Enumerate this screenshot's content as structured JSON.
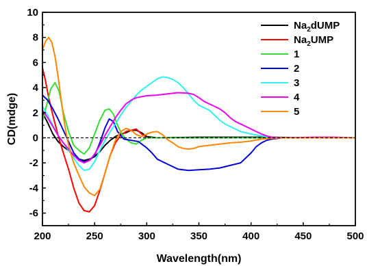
{
  "chart_data": {
    "type": "line",
    "xlabel": "Wavelength(nm)",
    "ylabel": "CD(mdge)",
    "xlim": [
      200,
      500
    ],
    "ylim": [
      -7,
      10
    ],
    "xticks": [
      200,
      250,
      300,
      350,
      400,
      450,
      500
    ],
    "yticks": [
      -6,
      -4,
      -2,
      0,
      2,
      4,
      6,
      8,
      10
    ],
    "grid": false,
    "legend_position": "top-right",
    "zero_line": "dashed",
    "series": [
      {
        "name": "Na2dUMP",
        "name_base": "Na",
        "name_sub": "2",
        "name_rest": "dUMP",
        "color": "#000000",
        "points": [
          [
            200,
            2.0
          ],
          [
            205,
            1.2
          ],
          [
            210,
            0.3
          ],
          [
            215,
            -0.3
          ],
          [
            220,
            -0.7
          ],
          [
            225,
            -1.0
          ],
          [
            230,
            -1.4
          ],
          [
            235,
            -1.7
          ],
          [
            240,
            -1.8
          ],
          [
            245,
            -1.7
          ],
          [
            250,
            -1.5
          ],
          [
            255,
            -1.1
          ],
          [
            260,
            -0.6
          ],
          [
            265,
            -0.2
          ],
          [
            270,
            0.1
          ],
          [
            275,
            0.3
          ],
          [
            280,
            0.4
          ],
          [
            285,
            0.6
          ],
          [
            290,
            0.6
          ],
          [
            295,
            0.4
          ],
          [
            300,
            0.1
          ],
          [
            310,
            0.0
          ],
          [
            350,
            0.05
          ],
          [
            380,
            0.05
          ],
          [
            420,
            0.05
          ],
          [
            450,
            0.0
          ],
          [
            500,
            0.0
          ]
        ]
      },
      {
        "name": "Na2UMP",
        "name_base": "Na",
        "name_sub": "2",
        "name_rest": "UMP",
        "color": "#ff0000",
        "points": [
          [
            200,
            5.6
          ],
          [
            203,
            4.5
          ],
          [
            206,
            3.2
          ],
          [
            210,
            1.8
          ],
          [
            215,
            0.2
          ],
          [
            220,
            -1.2
          ],
          [
            225,
            -2.5
          ],
          [
            230,
            -4.0
          ],
          [
            235,
            -5.2
          ],
          [
            240,
            -5.8
          ],
          [
            245,
            -5.9
          ],
          [
            250,
            -5.4
          ],
          [
            255,
            -4.2
          ],
          [
            260,
            -2.8
          ],
          [
            265,
            -1.4
          ],
          [
            270,
            -0.4
          ],
          [
            275,
            0.2
          ],
          [
            280,
            0.5
          ],
          [
            285,
            0.6
          ],
          [
            290,
            0.7
          ],
          [
            295,
            0.3
          ],
          [
            300,
            0.0
          ],
          [
            320,
            0.0
          ],
          [
            400,
            0.0
          ],
          [
            500,
            0.0
          ]
        ]
      },
      {
        "name": "1",
        "color": "#33dd33",
        "points": [
          [
            200,
            1.3
          ],
          [
            204,
            2.6
          ],
          [
            208,
            3.9
          ],
          [
            212,
            4.4
          ],
          [
            216,
            3.7
          ],
          [
            220,
            2.0
          ],
          [
            225,
            0.5
          ],
          [
            230,
            -0.6
          ],
          [
            235,
            -1.0
          ],
          [
            240,
            -1.3
          ],
          [
            245,
            -0.8
          ],
          [
            250,
            0.3
          ],
          [
            255,
            1.4
          ],
          [
            260,
            2.2
          ],
          [
            264,
            2.3
          ],
          [
            268,
            1.9
          ],
          [
            272,
            1.0
          ],
          [
            276,
            0.3
          ],
          [
            280,
            -0.1
          ],
          [
            285,
            -0.4
          ],
          [
            290,
            -0.5
          ],
          [
            295,
            -0.2
          ],
          [
            300,
            0.0
          ],
          [
            320,
            0.0
          ],
          [
            400,
            0.0
          ],
          [
            500,
            0.0
          ]
        ]
      },
      {
        "name": "2",
        "color": "#0000dd",
        "points": [
          [
            200,
            3.4
          ],
          [
            205,
            3.0
          ],
          [
            210,
            2.3
          ],
          [
            215,
            1.5
          ],
          [
            220,
            0.6
          ],
          [
            225,
            -0.3
          ],
          [
            230,
            -1.2
          ],
          [
            235,
            -1.7
          ],
          [
            240,
            -1.9
          ],
          [
            245,
            -1.8
          ],
          [
            250,
            -1.4
          ],
          [
            255,
            -0.4
          ],
          [
            260,
            0.8
          ],
          [
            264,
            1.5
          ],
          [
            268,
            1.3
          ],
          [
            272,
            0.5
          ],
          [
            278,
            -0.1
          ],
          [
            285,
            -0.2
          ],
          [
            292,
            -0.3
          ],
          [
            300,
            -0.8
          ],
          [
            305,
            -1.2
          ],
          [
            310,
            -1.7
          ],
          [
            320,
            -2.1
          ],
          [
            330,
            -2.5
          ],
          [
            340,
            -2.6
          ],
          [
            350,
            -2.55
          ],
          [
            360,
            -2.5
          ],
          [
            370,
            -2.4
          ],
          [
            380,
            -2.2
          ],
          [
            390,
            -2.0
          ],
          [
            395,
            -1.6
          ],
          [
            400,
            -1.2
          ],
          [
            405,
            -0.7
          ],
          [
            410,
            -0.4
          ],
          [
            415,
            -0.2
          ],
          [
            420,
            -0.1
          ],
          [
            430,
            0.0
          ],
          [
            500,
            0.0
          ]
        ]
      },
      {
        "name": "3",
        "color": "#33f0f0",
        "points": [
          [
            200,
            2.5
          ],
          [
            205,
            1.8
          ],
          [
            210,
            1.0
          ],
          [
            215,
            0.2
          ],
          [
            220,
            -0.4
          ],
          [
            225,
            -1.0
          ],
          [
            230,
            -1.6
          ],
          [
            235,
            -2.2
          ],
          [
            240,
            -2.6
          ],
          [
            245,
            -2.5
          ],
          [
            250,
            -1.9
          ],
          [
            255,
            -1.0
          ],
          [
            260,
            -0.2
          ],
          [
            265,
            0.5
          ],
          [
            270,
            1.1
          ],
          [
            275,
            1.8
          ],
          [
            280,
            2.4
          ],
          [
            285,
            2.9
          ],
          [
            290,
            3.4
          ],
          [
            295,
            3.8
          ],
          [
            300,
            4.1
          ],
          [
            305,
            4.4
          ],
          [
            310,
            4.7
          ],
          [
            315,
            4.85
          ],
          [
            320,
            4.8
          ],
          [
            325,
            4.65
          ],
          [
            330,
            4.4
          ],
          [
            335,
            4.0
          ],
          [
            340,
            3.5
          ],
          [
            345,
            3.0
          ],
          [
            350,
            2.6
          ],
          [
            355,
            2.4
          ],
          [
            360,
            2.2
          ],
          [
            365,
            1.8
          ],
          [
            370,
            1.4
          ],
          [
            375,
            1.1
          ],
          [
            380,
            0.9
          ],
          [
            385,
            0.7
          ],
          [
            390,
            0.5
          ],
          [
            400,
            0.3
          ],
          [
            410,
            0.15
          ],
          [
            420,
            0.05
          ],
          [
            430,
            0.0
          ],
          [
            500,
            0.0
          ]
        ]
      },
      {
        "name": "4",
        "color": "#ee00ee",
        "points": [
          [
            200,
            2.2
          ],
          [
            205,
            1.6
          ],
          [
            210,
            0.9
          ],
          [
            215,
            0.2
          ],
          [
            220,
            -0.4
          ],
          [
            225,
            -0.9
          ],
          [
            230,
            -1.4
          ],
          [
            235,
            -1.8
          ],
          [
            240,
            -2.0
          ],
          [
            245,
            -1.8
          ],
          [
            250,
            -1.3
          ],
          [
            255,
            -0.6
          ],
          [
            260,
            0.2
          ],
          [
            265,
            0.9
          ],
          [
            270,
            1.6
          ],
          [
            275,
            2.2
          ],
          [
            280,
            2.7
          ],
          [
            285,
            3.0
          ],
          [
            290,
            3.2
          ],
          [
            300,
            3.35
          ],
          [
            310,
            3.4
          ],
          [
            320,
            3.5
          ],
          [
            330,
            3.6
          ],
          [
            340,
            3.55
          ],
          [
            345,
            3.45
          ],
          [
            350,
            3.2
          ],
          [
            355,
            2.9
          ],
          [
            360,
            2.7
          ],
          [
            365,
            2.5
          ],
          [
            370,
            2.3
          ],
          [
            375,
            2.0
          ],
          [
            380,
            1.6
          ],
          [
            385,
            1.3
          ],
          [
            390,
            1.1
          ],
          [
            395,
            0.9
          ],
          [
            400,
            0.7
          ],
          [
            405,
            0.5
          ],
          [
            410,
            0.3
          ],
          [
            415,
            0.15
          ],
          [
            420,
            0.05
          ],
          [
            430,
            0.0
          ],
          [
            460,
            0.05
          ],
          [
            480,
            0.05
          ],
          [
            500,
            0.0
          ]
        ]
      },
      {
        "name": "5",
        "color": "#ff8800",
        "points": [
          [
            200,
            7.0
          ],
          [
            203,
            7.7
          ],
          [
            206,
            8.0
          ],
          [
            209,
            7.6
          ],
          [
            212,
            6.5
          ],
          [
            215,
            4.9
          ],
          [
            218,
            3.0
          ],
          [
            221,
            1.2
          ],
          [
            224,
            -0.2
          ],
          [
            227,
            -1.2
          ],
          [
            230,
            -2.0
          ],
          [
            235,
            -3.0
          ],
          [
            240,
            -3.9
          ],
          [
            245,
            -4.4
          ],
          [
            250,
            -4.6
          ],
          [
            255,
            -4.1
          ],
          [
            260,
            -2.8
          ],
          [
            265,
            -1.4
          ],
          [
            270,
            -0.2
          ],
          [
            275,
            0.5
          ],
          [
            280,
            0.75
          ],
          [
            285,
            0.6
          ],
          [
            290,
            0.25
          ],
          [
            295,
            0.1
          ],
          [
            300,
            0.3
          ],
          [
            305,
            0.45
          ],
          [
            310,
            0.5
          ],
          [
            315,
            0.25
          ],
          [
            320,
            -0.15
          ],
          [
            325,
            -0.4
          ],
          [
            330,
            -0.7
          ],
          [
            335,
            -0.85
          ],
          [
            340,
            -0.9
          ],
          [
            345,
            -0.85
          ],
          [
            350,
            -0.7
          ],
          [
            360,
            -0.6
          ],
          [
            370,
            -0.5
          ],
          [
            380,
            -0.4
          ],
          [
            390,
            -0.35
          ],
          [
            400,
            -0.25
          ],
          [
            410,
            -0.1
          ],
          [
            420,
            -0.05
          ],
          [
            430,
            0.0
          ],
          [
            500,
            0.0
          ]
        ]
      }
    ]
  }
}
